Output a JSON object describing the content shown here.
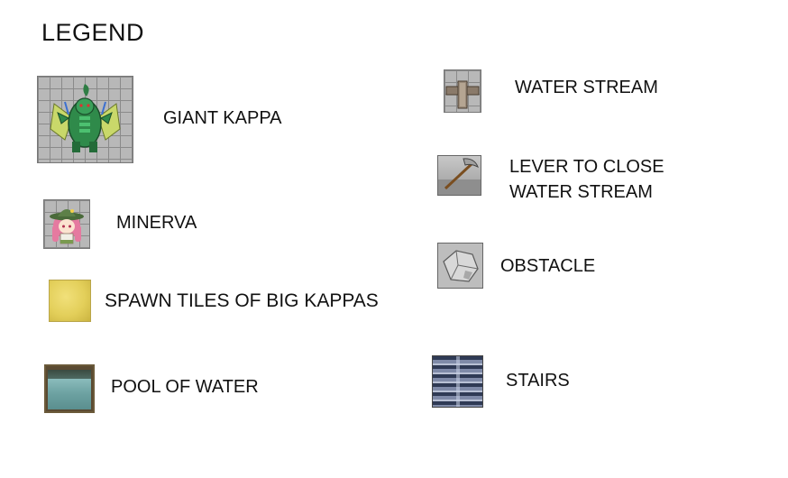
{
  "legend": {
    "title": "LEGEND",
    "left_column": [
      {
        "id": "giant-kappa",
        "label": "GIANT KAPPA",
        "icon": "giant-kappa-icon"
      },
      {
        "id": "minerva",
        "label": "MINERVA",
        "icon": "minerva-icon"
      },
      {
        "id": "spawn-tiles",
        "label": "SPAWN TILES OF BIG KAPPAS",
        "icon": "spawn-tile-icon"
      },
      {
        "id": "pool-of-water",
        "label": "POOL OF WATER",
        "icon": "pool-of-water-icon"
      }
    ],
    "right_column": [
      {
        "id": "water-stream",
        "label": "WATER STREAM",
        "icon": "water-stream-icon"
      },
      {
        "id": "lever",
        "label_line1": "LEVER TO CLOSE",
        "label_line2": "WATER STREAM",
        "icon": "lever-icon"
      },
      {
        "id": "obstacle",
        "label": "OBSTACLE",
        "icon": "obstacle-icon"
      },
      {
        "id": "stairs",
        "label": "STAIRS",
        "icon": "stairs-icon"
      }
    ]
  },
  "colors": {
    "kappa_green": "#2f8a4a",
    "spawn_yellow": "#e3cf5a",
    "water_teal": "#6ea3a3",
    "stairs_blue": "#4a5a78"
  }
}
